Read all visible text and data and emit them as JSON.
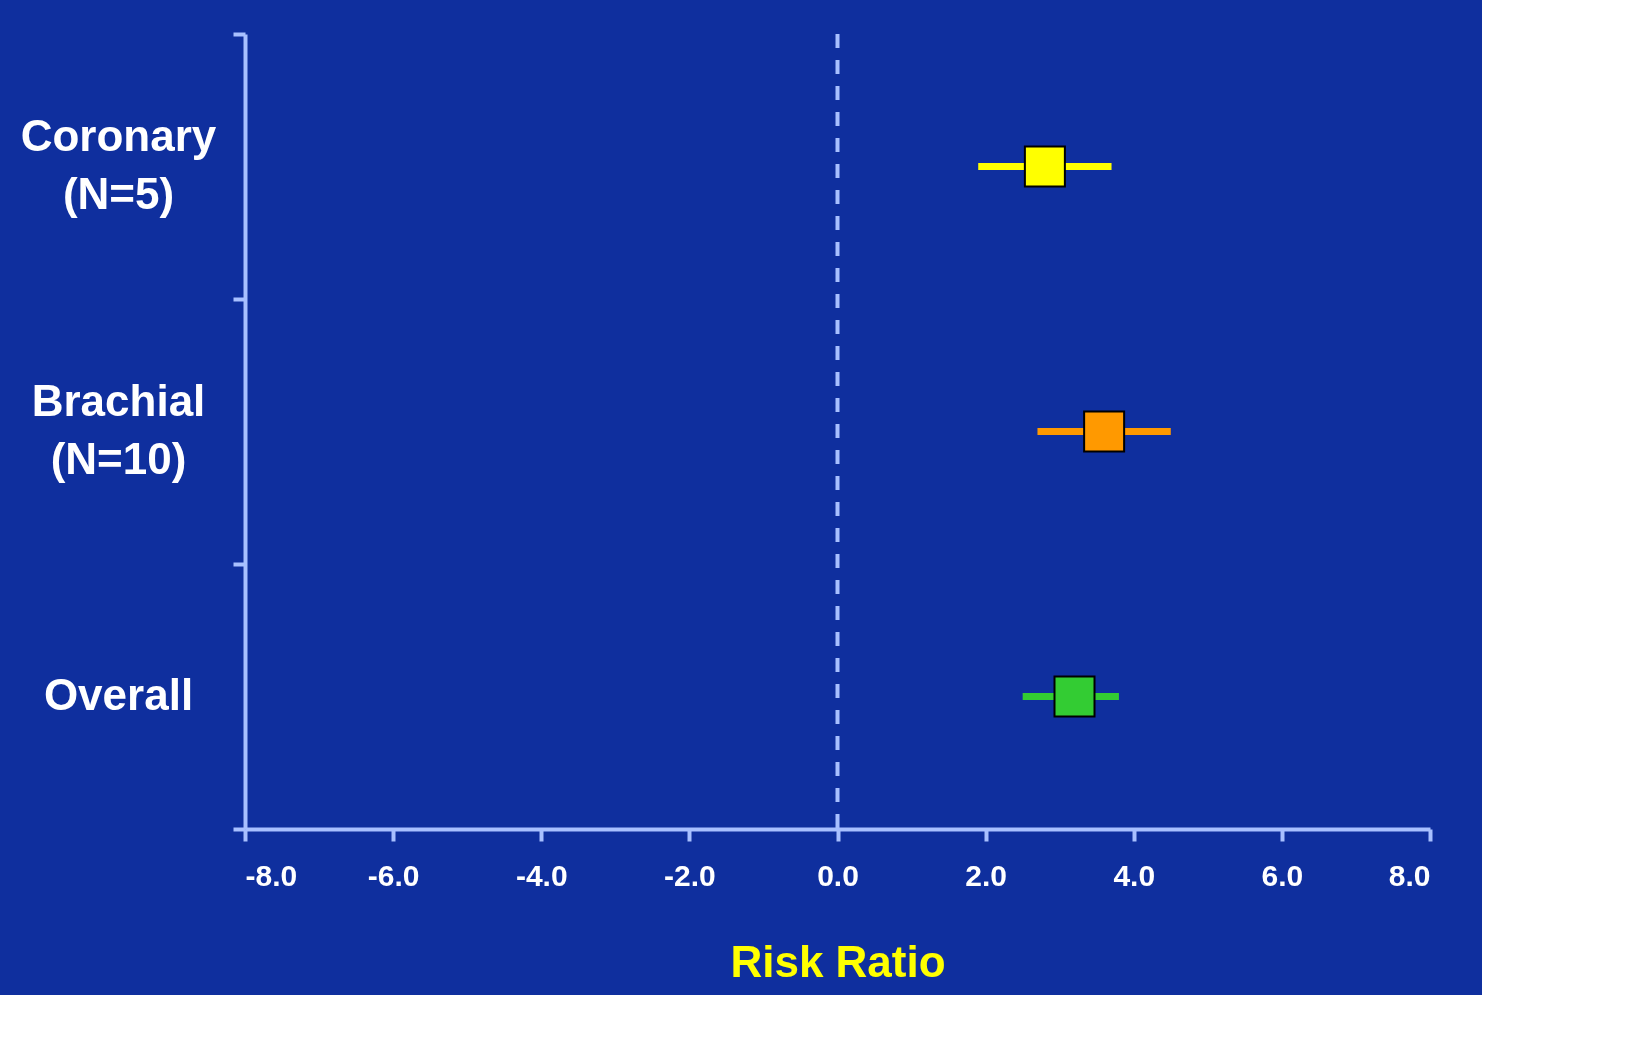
{
  "chart_data": {
    "type": "scatter",
    "orientation": "horizontal",
    "marker": "square",
    "categories": [
      "Coronary (N=5)",
      "Brachial (N=10)",
      "Overall"
    ],
    "values": [
      2.8,
      3.6,
      3.2
    ],
    "errors": [
      [
        1.9,
        3.7
      ],
      [
        2.7,
        4.5
      ],
      [
        2.5,
        3.8
      ]
    ],
    "colors": [
      "#ffff00",
      "#ff9900",
      "#33cc33"
    ],
    "xlabel": "Risk Ratio",
    "xlim": [
      -8,
      8
    ],
    "xticks": [
      {
        "value": -8,
        "label": "-8.0"
      },
      {
        "value": -6,
        "label": "-6.0"
      },
      {
        "value": -4,
        "label": "-4.0"
      },
      {
        "value": -2,
        "label": "-2.0"
      },
      {
        "value": 0,
        "label": "0.0"
      },
      {
        "value": 2,
        "label": "2.0"
      },
      {
        "value": 4,
        "label": "4.0"
      },
      {
        "value": 6,
        "label": "6.0"
      },
      {
        "value": 8,
        "label": "8.0"
      }
    ],
    "ref_lines": [
      {
        "axis": "x",
        "value": 0,
        "line_style": "dashed",
        "color": "#a8c0ff"
      }
    ],
    "grid": false
  }
}
